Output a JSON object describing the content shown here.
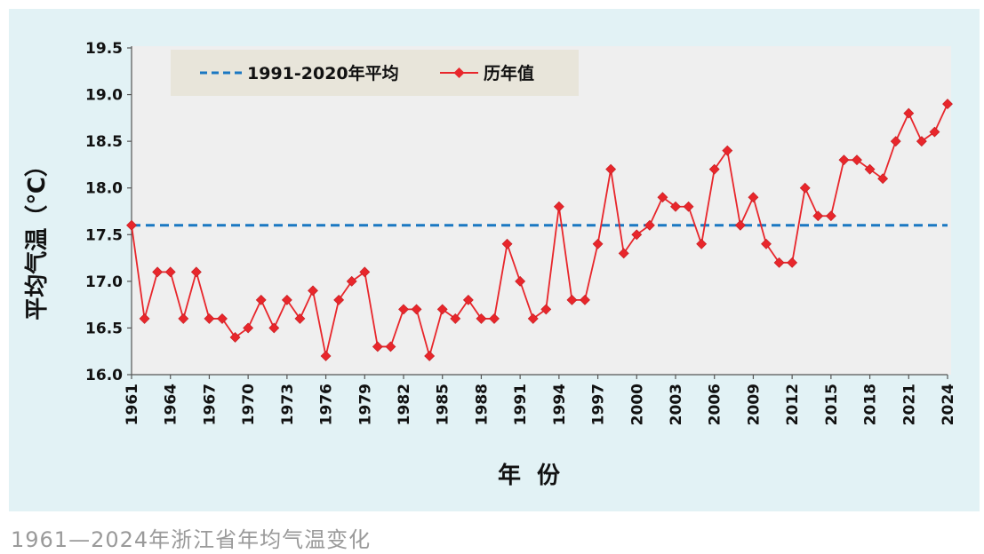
{
  "caption": "1961—2024年浙江省年均气温变化",
  "colors": {
    "background": "#e2f2f5",
    "plot_area": "#efefef",
    "legend_bg": "#e8e5da",
    "series_line": "#e8262b",
    "baseline": "#1a78c2"
  },
  "chart_data": {
    "type": "line",
    "title": "",
    "xlabel": "年  份",
    "ylabel": "平均气温（℃）",
    "ylim": [
      16.0,
      19.5
    ],
    "yticks": [
      "16.0",
      "16.5",
      "17.0",
      "17.5",
      "18.0",
      "18.5",
      "19.0",
      "19.5"
    ],
    "xlim": [
      1961,
      2024
    ],
    "xticks": [
      "1961",
      "1964",
      "1967",
      "1970",
      "1973",
      "1976",
      "1979",
      "1982",
      "1985",
      "1988",
      "1991",
      "1994",
      "1997",
      "2000",
      "2003",
      "2006",
      "2009",
      "2012",
      "2015",
      "2018",
      "2021",
      "2024"
    ],
    "legend_position": "top-left",
    "grid": false,
    "baseline": {
      "name": "1991-2020年平均",
      "value": 17.6,
      "style": "dashed"
    },
    "series": [
      {
        "name": "历年值",
        "marker": "diamond",
        "x": [
          1961,
          1962,
          1963,
          1964,
          1965,
          1966,
          1967,
          1968,
          1969,
          1970,
          1971,
          1972,
          1973,
          1974,
          1975,
          1976,
          1977,
          1978,
          1979,
          1980,
          1981,
          1982,
          1983,
          1984,
          1985,
          1986,
          1987,
          1988,
          1989,
          1990,
          1991,
          1992,
          1993,
          1994,
          1995,
          1996,
          1997,
          1998,
          1999,
          2000,
          2001,
          2002,
          2003,
          2004,
          2005,
          2006,
          2007,
          2008,
          2009,
          2010,
          2011,
          2012,
          2013,
          2014,
          2015,
          2016,
          2017,
          2018,
          2019,
          2020,
          2021,
          2022,
          2023,
          2024
        ],
        "values": [
          17.6,
          16.6,
          17.1,
          17.1,
          16.6,
          17.1,
          16.6,
          16.6,
          16.4,
          16.5,
          16.8,
          16.5,
          16.8,
          16.6,
          16.9,
          16.2,
          16.8,
          17.0,
          17.1,
          16.3,
          16.3,
          16.7,
          16.7,
          16.2,
          16.7,
          16.6,
          16.8,
          16.6,
          16.6,
          17.4,
          17.0,
          16.6,
          16.7,
          17.8,
          16.8,
          16.8,
          17.4,
          18.2,
          17.3,
          17.5,
          17.6,
          17.9,
          17.8,
          17.8,
          17.4,
          18.2,
          18.4,
          17.6,
          17.9,
          17.4,
          17.2,
          17.2,
          18.0,
          17.7,
          17.7,
          18.3,
          18.3,
          18.2,
          18.1,
          18.5,
          18.8,
          18.5,
          18.6,
          18.9
        ]
      }
    ]
  }
}
